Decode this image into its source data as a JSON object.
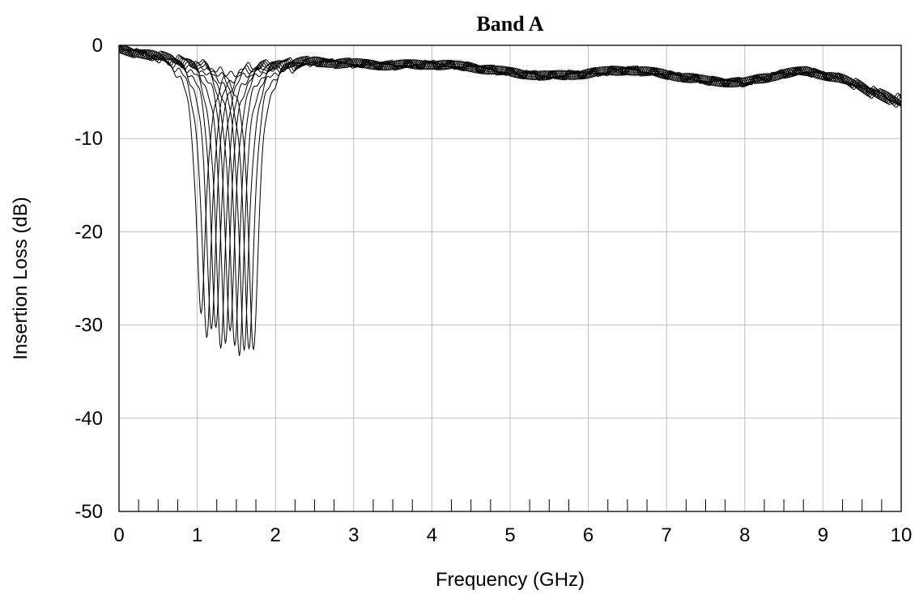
{
  "chart_data": {
    "type": "line",
    "title": "Band A",
    "xlabel": "Frequency (GHz)",
    "ylabel": "Insertion Loss (dB)",
    "xlim": [
      0,
      10
    ],
    "ylim": [
      -50,
      0
    ],
    "x_ticks": [
      "0",
      "1",
      "2",
      "3",
      "4",
      "5",
      "6",
      "7",
      "8",
      "9",
      "10"
    ],
    "y_ticks": [
      "0",
      "-10",
      "-20",
      "-30",
      "-40",
      "-50"
    ],
    "grid": true,
    "legend": "none",
    "line_color": "#000000",
    "grid_color": "#bfbfbf",
    "x_minor_ticks": [
      0.25,
      0.5,
      0.75,
      1.25,
      1.5,
      1.75,
      2.25,
      2.5,
      2.75,
      3.25,
      3.5,
      3.75,
      4.25,
      4.5,
      4.75,
      5.25,
      5.5,
      5.75,
      6.25,
      6.5,
      6.75,
      7.25,
      7.5,
      7.75,
      8.25,
      8.5,
      8.75,
      9.25,
      9.5,
      9.75
    ],
    "baseline": {
      "x": [
        0,
        0.3,
        0.6,
        1.0,
        1.5,
        2.0,
        2.5,
        3.0,
        3.5,
        4.0,
        4.5,
        5.0,
        5.5,
        6.0,
        6.5,
        7.0,
        7.5,
        8.0,
        8.5,
        8.8,
        9.2,
        9.5,
        9.8,
        10.0
      ],
      "y": [
        -0.3,
        -0.7,
        -1.1,
        -1.5,
        -2.0,
        -1.7,
        -1.6,
        -1.9,
        -2.1,
        -2.0,
        -2.3,
        -2.9,
        -3.3,
        -3.0,
        -2.6,
        -3.1,
        -3.8,
        -4.0,
        -3.0,
        -2.8,
        -3.5,
        -4.5,
        -5.5,
        -6.2
      ]
    },
    "series": [
      {
        "notch_center": 1.05,
        "notch_depth": -28.6
      },
      {
        "notch_center": 1.12,
        "notch_depth": -31.5
      },
      {
        "notch_center": 1.18,
        "notch_depth": -30.3
      },
      {
        "notch_center": 1.24,
        "notch_depth": -30.5
      },
      {
        "notch_center": 1.3,
        "notch_depth": -32.5
      },
      {
        "notch_center": 1.36,
        "notch_depth": -31.5
      },
      {
        "notch_center": 1.42,
        "notch_depth": -31.0
      },
      {
        "notch_center": 1.48,
        "notch_depth": -32.5
      },
      {
        "notch_center": 1.54,
        "notch_depth": -32.8
      },
      {
        "notch_center": 1.6,
        "notch_depth": -32.8
      },
      {
        "notch_center": 1.66,
        "notch_depth": -32.8
      },
      {
        "notch_center": 1.72,
        "notch_depth": -32.5
      }
    ]
  }
}
